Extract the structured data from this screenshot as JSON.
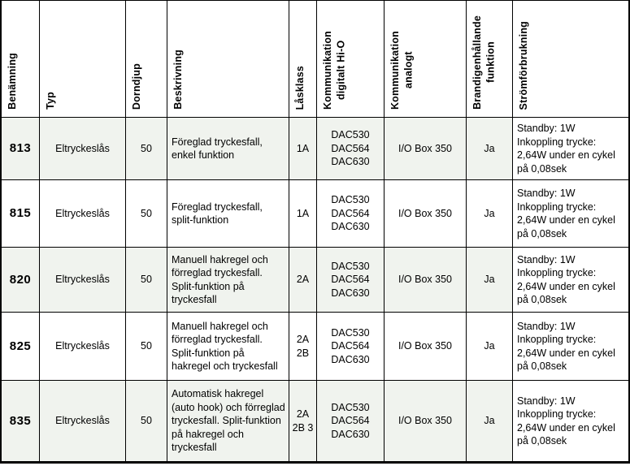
{
  "colors": {
    "row_shade": "#f0f3ee",
    "border": "#000000",
    "background": "#ffffff",
    "text": "#000000"
  },
  "table": {
    "headers": [
      "Benämning",
      "Typ",
      "Dorndjup",
      "Beskrivning",
      "Låsklass",
      "Kommunikation\ndigitalt Hi-O",
      "Kommunikation\nanalogt",
      "Brandigenhållande\nfunktion",
      "Strömförbrukning"
    ],
    "rows": [
      {
        "id": "813",
        "typ": "Eltryckeslås",
        "dorndjup": "50",
        "beskrivning": "Föreglad tryckesfall, enkel funktion",
        "lasklass": "1A",
        "kom_digital": "DAC530\nDAC564\nDAC630",
        "kom_analog": "I/O Box 350",
        "brand": "Ja",
        "strom": "Standby: 1W\nInkoppling trycke:\n2,64W under en cykel\npå 0,08sek"
      },
      {
        "id": "815",
        "typ": "Eltryckeslås",
        "dorndjup": "50",
        "beskrivning": "Föreglad tryckesfall, split-funktion",
        "lasklass": "1A",
        "kom_digital": "DAC530\nDAC564\nDAC630",
        "kom_analog": "I/O Box 350",
        "brand": "Ja",
        "strom": "Standby: 1W\nInkoppling trycke:\n2,64W under en cykel\npå 0,08sek"
      },
      {
        "id": "820",
        "typ": "Eltryckeslås",
        "dorndjup": "50",
        "beskrivning": "Manuell hakregel och förreglad tryckesfall. Split-funktion på tryckesfall",
        "lasklass": "2A",
        "kom_digital": "DAC530\nDAC564\nDAC630",
        "kom_analog": "I/O Box 350",
        "brand": "Ja",
        "strom": "Standby: 1W\nInkoppling trycke:\n2,64W under en cykel\npå 0,08sek"
      },
      {
        "id": "825",
        "typ": "Eltryckeslås",
        "dorndjup": "50",
        "beskrivning": "Manuell hakregel och förreglad tryckesfall. Split-funktion på hakregel och tryckesfall",
        "lasklass": "2A\n2B",
        "kom_digital": "DAC530\nDAC564\nDAC630",
        "kom_analog": "I/O Box 350",
        "brand": "Ja",
        "strom": "Standby: 1W\nInkoppling trycke:\n2,64W under en cykel\npå 0,08sek"
      },
      {
        "id": "835",
        "typ": "Eltryckeslås",
        "dorndjup": "50",
        "beskrivning": "Automatisk hakregel (auto hook) och förreglad tryckesfall. Split-funktion på hakregel och tryckesfall",
        "lasklass": "2A\n2B 3",
        "kom_digital": "DAC530\nDAC564\nDAC630",
        "kom_analog": "I/O Box 350",
        "brand": "Ja",
        "strom": "Standby: 1W\nInkoppling trycke:\n2,64W under en cykel\npå 0,08sek"
      }
    ]
  }
}
